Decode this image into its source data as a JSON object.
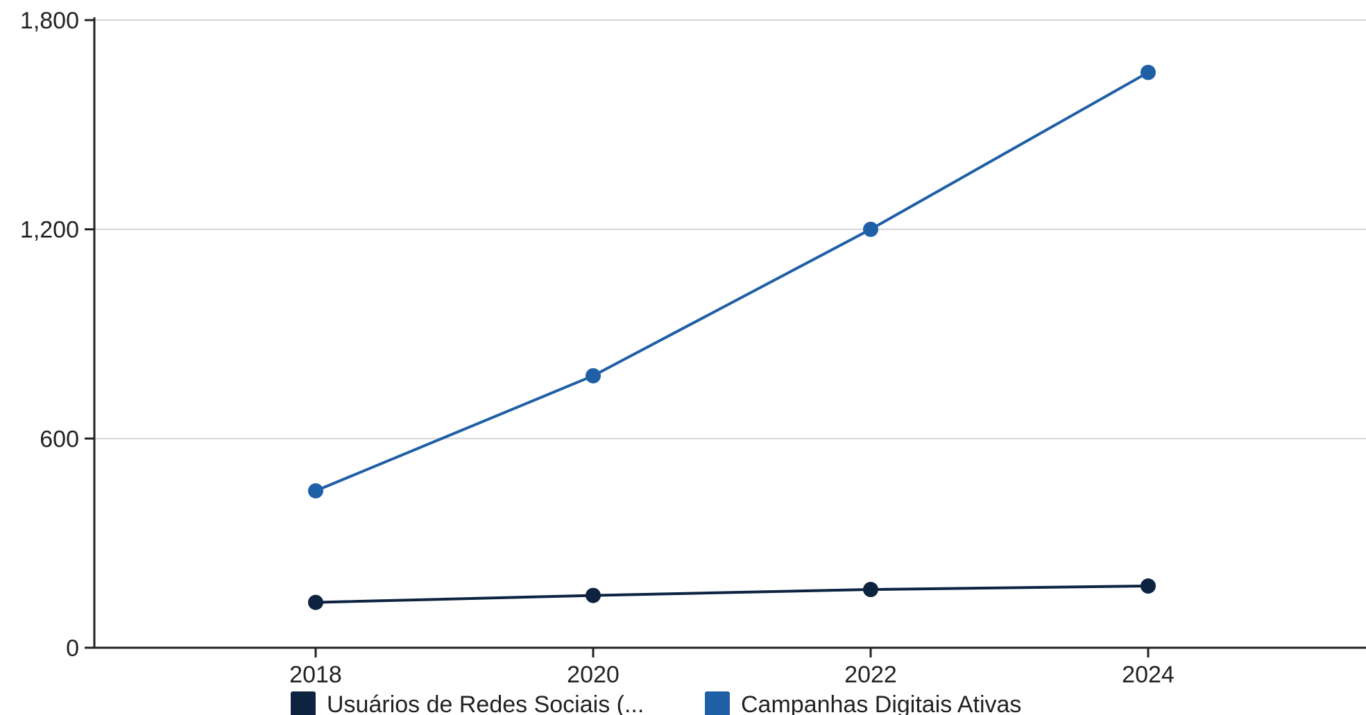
{
  "chart_data": {
    "type": "line",
    "title": "",
    "xlabel": "",
    "ylabel": "",
    "categories": [
      "2018",
      "2020",
      "2022",
      "2024"
    ],
    "ylim": [
      0,
      1800
    ],
    "yticks": [
      "0",
      "600",
      "1,200",
      "1,800"
    ],
    "grid": true,
    "legend_position": "bottom-center",
    "series": [
      {
        "name": "Usuários de Redes Sociais (...",
        "color": "#0d2340",
        "values": [
          130,
          150,
          167,
          177
        ]
      },
      {
        "name": "Campanhas Digitais Ativas",
        "color": "#1f5fa6",
        "values": [
          450,
          780,
          1200,
          1650
        ]
      }
    ]
  }
}
